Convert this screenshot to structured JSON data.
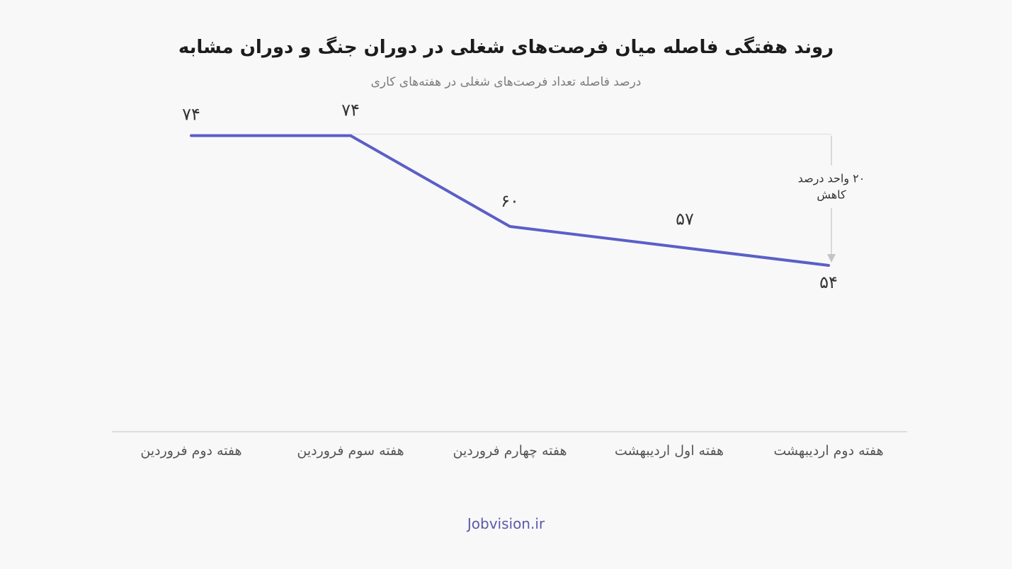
{
  "header": {
    "title": "روند هفتگی فاصله میان فرصت‌های شغلی در دوران جنگ و دوران مشابه",
    "subtitle": "درصد فاصله تعداد فرصت‌های شغلی در هفته‌های کاری"
  },
  "chart_data": {
    "type": "line",
    "title": "روند هفتگی فاصله میان فرصت‌های شغلی در دوران جنگ و دوران مشابه",
    "subtitle": "درصد فاصله تعداد فرصت‌های شغلی در هفته‌های کاری",
    "categories": [
      "هفته دوم فروردین",
      "هفته سوم فروردین",
      "هفته چهارم فروردین",
      "هفته اول اردیبهشت",
      "هفته دوم اردیبهشت"
    ],
    "values": [
      74,
      74,
      60,
      57,
      54
    ],
    "value_labels": [
      "۷۴",
      "۷۴",
      "۶۰",
      "۵۷",
      "۵۴"
    ],
    "ylim": [
      30,
      78
    ],
    "grid": false,
    "line_color": "#5b5fc7",
    "annotation": {
      "text_line1": "۲۰ واحد درصد",
      "text_line2": "کاهش",
      "from_value": 74,
      "to_value": 54
    }
  },
  "footer": {
    "source": "Jobvision.ir"
  }
}
